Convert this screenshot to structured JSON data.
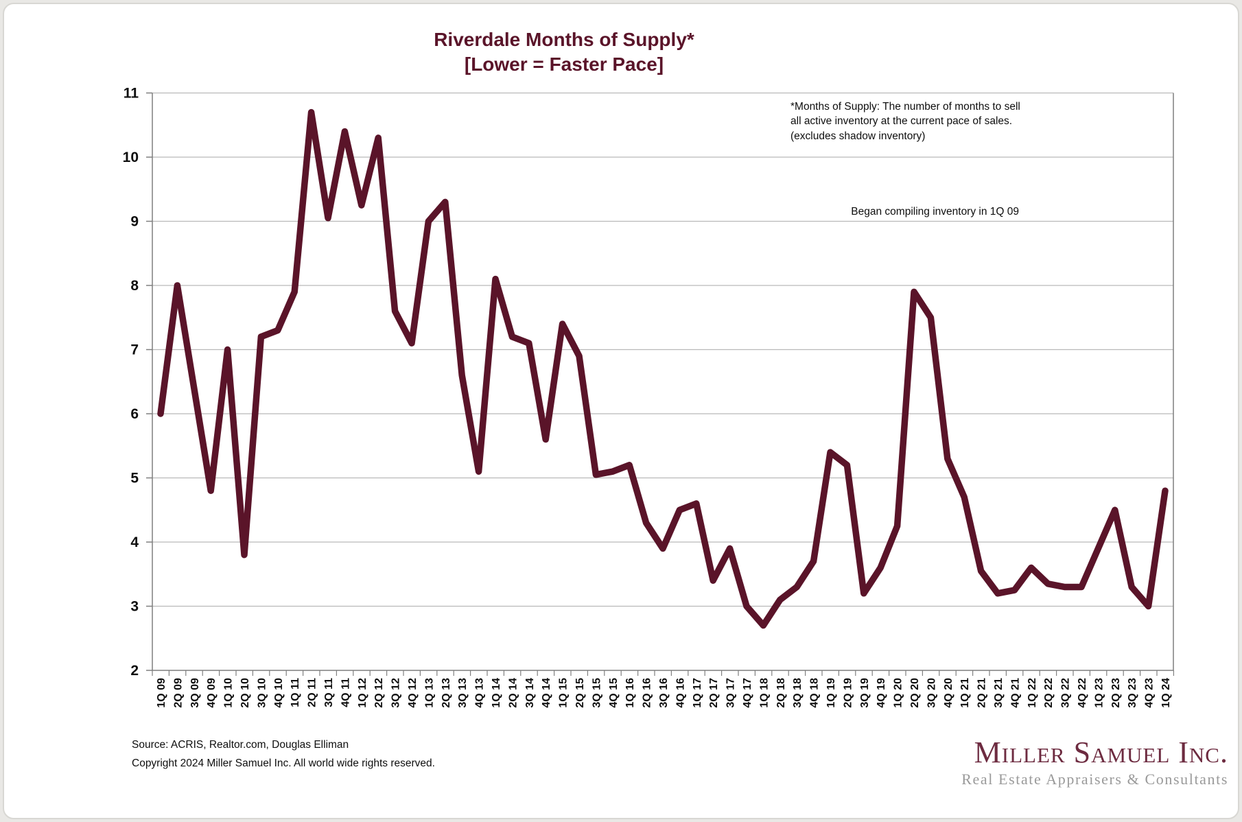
{
  "page": {
    "title_line1": "Riverdale Months of Supply*",
    "title_line2": "[Lower = Faster Pace]",
    "annotation_line1": "*Months of Supply: The number of months to sell",
    "annotation_line2": "all active inventory at the current pace of sales.",
    "annotation_line3": "(excludes shadow inventory)",
    "note": "Began compiling inventory in 1Q 09",
    "source_line1": "Source: ACRIS, Realtor.com, Douglas Elliman",
    "source_line2": "Copyright 2024 Miller Samuel Inc.  All world wide rights reserved.",
    "logo_name": "Miller Samuel Inc.",
    "logo_subtitle": "Real Estate Appraisers & Consultants",
    "colors": {
      "line": "#5A1429",
      "title": "#5A1429",
      "logo": "#6D2B40",
      "grid": "#b9b9b9",
      "axis": "#7f7f7f",
      "label": "#0e0e0e"
    }
  },
  "chart_data": {
    "type": "line",
    "title": "Riverdale Months of Supply* [Lower = Faster Pace]",
    "xlabel": "",
    "ylabel": "",
    "ylim": [
      2,
      11
    ],
    "ytick_step": 1,
    "grid": "horizontal",
    "legend": "none",
    "series_name": "Months of Supply",
    "categories": [
      "1Q 09",
      "2Q 09",
      "3Q 09",
      "4Q 09",
      "1Q 10",
      "2Q 10",
      "3Q 10",
      "4Q 10",
      "1Q 11",
      "2Q 11",
      "3Q 11",
      "4Q 11",
      "1Q 12",
      "2Q 12",
      "3Q 12",
      "4Q 12",
      "1Q 13",
      "2Q 13",
      "3Q 13",
      "4Q 13",
      "1Q 14",
      "2Q 14",
      "3Q 14",
      "4Q 14",
      "1Q 15",
      "2Q 15",
      "3Q 15",
      "4Q 15",
      "1Q 16",
      "2Q 16",
      "3Q 16",
      "4Q 16",
      "1Q 17",
      "2Q 17",
      "3Q 17",
      "4Q 17",
      "1Q 18",
      "2Q 18",
      "3Q 18",
      "4Q 18",
      "1Q 19",
      "2Q 19",
      "3Q 19",
      "4Q 19",
      "1Q 20",
      "2Q 20",
      "3Q 20",
      "4Q 20",
      "1Q 21",
      "2Q 21",
      "3Q 21",
      "4Q 21",
      "1Q 22",
      "2Q 22",
      "3Q 22",
      "4Q 22",
      "1Q 23",
      "2Q 23",
      "3Q 23",
      "4Q 23",
      "1Q 24"
    ],
    "values": [
      6.0,
      8.0,
      6.4,
      4.8,
      7.0,
      3.8,
      7.2,
      7.3,
      7.9,
      10.7,
      9.05,
      10.4,
      9.25,
      10.3,
      7.6,
      7.1,
      9.0,
      9.3,
      6.6,
      5.1,
      8.1,
      7.2,
      7.1,
      5.6,
      7.4,
      6.9,
      5.05,
      5.1,
      5.2,
      4.3,
      3.9,
      4.5,
      4.6,
      3.4,
      3.9,
      3.0,
      2.7,
      3.1,
      3.3,
      3.7,
      5.4,
      5.2,
      3.2,
      3.6,
      4.25,
      7.9,
      7.5,
      5.3,
      4.7,
      3.55,
      3.2,
      3.25,
      3.6,
      3.35,
      3.3,
      3.3,
      3.9,
      4.5,
      3.3,
      3.0,
      4.8
    ]
  }
}
